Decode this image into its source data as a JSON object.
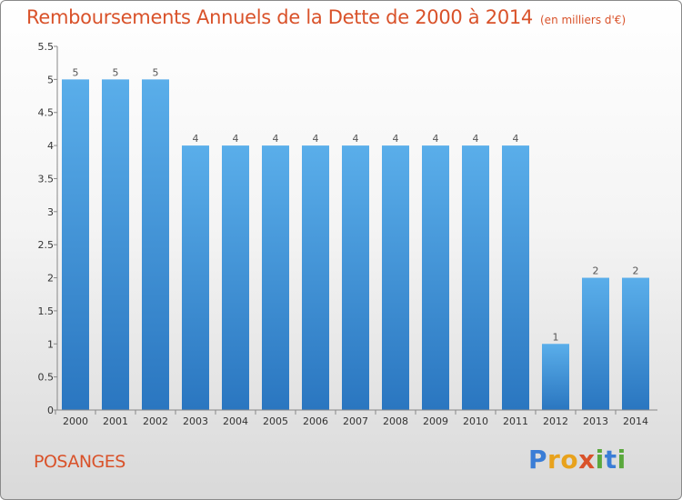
{
  "header": {
    "title": "Remboursements Annuels de la Dette de 2000 à 2014",
    "unit": "(en milliers d'€)"
  },
  "footer": {
    "commune": "POSANGES",
    "brand": "Proxiti"
  },
  "colors": {
    "title": "#d9522a",
    "bar_top": "#5aaeea",
    "bar_bottom": "#2a76c0"
  },
  "chart_data": {
    "type": "bar",
    "title": "Remboursements Annuels de la Dette de 2000 à 2014",
    "subtitle": "(en milliers d'€)",
    "categories": [
      "2000",
      "2001",
      "2002",
      "2003",
      "2004",
      "2005",
      "2006",
      "2007",
      "2008",
      "2009",
      "2010",
      "2011",
      "2012",
      "2013",
      "2014"
    ],
    "values": [
      5,
      5,
      5,
      4,
      4,
      4,
      4,
      4,
      4,
      4,
      4,
      4,
      1,
      2,
      2
    ],
    "data_labels": [
      "5",
      "5",
      "5",
      "4",
      "4",
      "4",
      "4",
      "4",
      "4",
      "4",
      "4",
      "4",
      "1",
      "2",
      "2"
    ],
    "y_ticks": [
      "0",
      "0.5",
      "1",
      "1.5",
      "2",
      "2.5",
      "3",
      "3.5",
      "4",
      "4.5",
      "5",
      "5.5"
    ],
    "ylim": [
      0,
      5.5
    ],
    "grid": false
  }
}
